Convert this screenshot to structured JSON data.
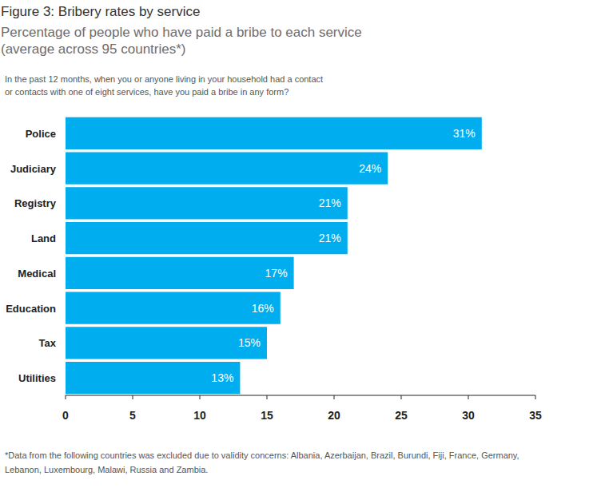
{
  "chart_data": {
    "type": "bar",
    "orientation": "horizontal",
    "title": "Figure 3: Bribery rates by service",
    "subtitle": [
      "Percentage of people who have paid a bribe to each service",
      "(average across 95 countries*)"
    ],
    "question": [
      "In the past 12 months, when you or anyone living in your household had a contact",
      "or contacts with one of eight services, have you paid a bribe in any form?"
    ],
    "footnote": [
      "*Data from the following countries was excluded due to validity concerns: Albania, Azerbaijan, Brazil, Burundi, Fiji, France, Germany,",
      "Lebanon, Luxembourg, Malawi, Russia and Zambia."
    ],
    "categories": [
      "Police",
      "Judiciary",
      "Registry",
      "Land",
      "Medical",
      "Education",
      "Tax",
      "Utilities"
    ],
    "values": [
      31,
      24,
      21,
      21,
      17,
      16,
      15,
      13
    ],
    "value_labels": [
      "31%",
      "24%",
      "21%",
      "21%",
      "17%",
      "16%",
      "15%",
      "13%"
    ],
    "color": "#00aeef",
    "xlim": [
      0,
      35
    ],
    "xticks": [
      0,
      5,
      10,
      15,
      20,
      25,
      30,
      35
    ],
    "grid": false,
    "data_labels": true
  }
}
